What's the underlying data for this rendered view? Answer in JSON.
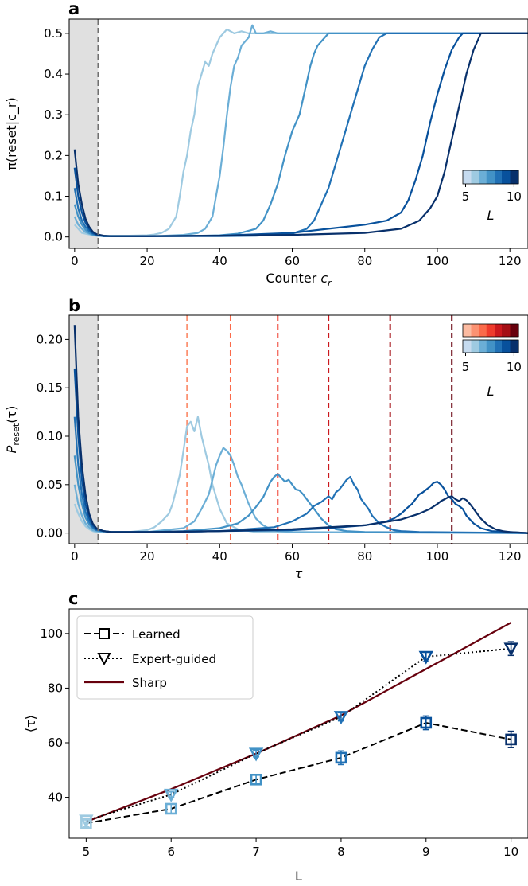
{
  "figure": {
    "panels": [
      "a",
      "b",
      "c"
    ]
  },
  "chart_data": [
    {
      "panel": "a",
      "type": "line",
      "xlabel_prefix": "Counter ",
      "xlabel_var": "c",
      "xlabel_sub": "r",
      "ylabel": "π(reset|c_r)",
      "xlim": [
        -1.5,
        125
      ],
      "ylim": [
        -0.028,
        0.535
      ],
      "x_ticks": [
        0,
        20,
        40,
        60,
        80,
        100,
        120
      ],
      "y_ticks": [
        0.0,
        0.1,
        0.2,
        0.3,
        0.4,
        0.5
      ],
      "y_tick_labels": [
        "0.0",
        "0.1",
        "0.2",
        "0.3",
        "0.4",
        "0.5"
      ],
      "shaded_region": [
        -1.5,
        6.5
      ],
      "dashed_line_x": 6.5,
      "colorbar": {
        "label": "L",
        "ticks": [
          5,
          10
        ],
        "palette": "Blues"
      },
      "series": [
        {
          "L": 5,
          "color": "#9ecae1",
          "x": [
            0,
            1,
            2,
            3,
            4,
            5,
            6,
            8,
            10,
            15,
            20,
            22,
            24,
            26,
            28,
            29,
            30,
            31,
            32,
            33,
            34,
            35,
            36,
            37,
            38,
            39,
            40,
            41,
            42,
            44,
            46,
            48,
            50,
            52,
            125
          ],
          "y": [
            0.03,
            0.02,
            0.01,
            0.008,
            0.006,
            0.004,
            0.003,
            0.003,
            0.003,
            0.003,
            0.004,
            0.006,
            0.01,
            0.02,
            0.05,
            0.1,
            0.16,
            0.2,
            0.26,
            0.3,
            0.37,
            0.4,
            0.43,
            0.42,
            0.45,
            0.47,
            0.49,
            0.5,
            0.51,
            0.5,
            0.505,
            0.5,
            0.5,
            0.5,
            0.5
          ]
        },
        {
          "L": 6,
          "color": "#6baed6",
          "x": [
            0,
            1,
            2,
            3,
            4,
            5,
            6,
            8,
            10,
            15,
            20,
            25,
            30,
            34,
            36,
            38,
            39,
            40,
            41,
            42,
            43,
            44,
            45,
            46,
            47,
            48,
            49,
            50,
            52,
            54,
            56,
            125
          ],
          "y": [
            0.05,
            0.03,
            0.02,
            0.012,
            0.008,
            0.005,
            0.003,
            0.002,
            0.002,
            0.002,
            0.002,
            0.003,
            0.005,
            0.01,
            0.02,
            0.05,
            0.1,
            0.15,
            0.22,
            0.3,
            0.37,
            0.42,
            0.44,
            0.47,
            0.48,
            0.49,
            0.52,
            0.5,
            0.5,
            0.505,
            0.5,
            0.5
          ]
        },
        {
          "L": 7,
          "color": "#4292c6",
          "x": [
            0,
            1,
            2,
            3,
            4,
            5,
            6,
            8,
            10,
            15,
            20,
            30,
            40,
            45,
            50,
            52,
            54,
            56,
            58,
            60,
            62,
            63,
            64,
            65,
            66,
            67,
            68,
            69,
            70,
            72,
            75,
            80,
            125
          ],
          "y": [
            0.08,
            0.05,
            0.03,
            0.018,
            0.01,
            0.006,
            0.004,
            0.002,
            0.002,
            0.002,
            0.002,
            0.002,
            0.004,
            0.008,
            0.02,
            0.04,
            0.08,
            0.13,
            0.2,
            0.26,
            0.3,
            0.34,
            0.38,
            0.42,
            0.45,
            0.47,
            0.48,
            0.49,
            0.5,
            0.5,
            0.5,
            0.5,
            0.5
          ]
        },
        {
          "L": 8,
          "color": "#2171b5",
          "x": [
            0,
            1,
            2,
            3,
            4,
            5,
            6,
            8,
            10,
            20,
            30,
            40,
            50,
            60,
            64,
            66,
            68,
            70,
            72,
            74,
            76,
            78,
            80,
            82,
            84,
            86,
            88,
            90,
            125
          ],
          "y": [
            0.12,
            0.07,
            0.04,
            0.025,
            0.015,
            0.008,
            0.005,
            0.002,
            0.002,
            0.002,
            0.002,
            0.002,
            0.003,
            0.008,
            0.02,
            0.04,
            0.08,
            0.12,
            0.18,
            0.24,
            0.3,
            0.36,
            0.42,
            0.46,
            0.49,
            0.5,
            0.5,
            0.5,
            0.5
          ]
        },
        {
          "L": 9,
          "color": "#08519c",
          "x": [
            0,
            1,
            2,
            3,
            4,
            5,
            6,
            8,
            10,
            20,
            40,
            60,
            70,
            80,
            86,
            90,
            92,
            94,
            96,
            98,
            100,
            102,
            104,
            106,
            107,
            108,
            110,
            125
          ],
          "y": [
            0.17,
            0.1,
            0.06,
            0.035,
            0.02,
            0.01,
            0.006,
            0.002,
            0.002,
            0.002,
            0.003,
            0.01,
            0.02,
            0.03,
            0.04,
            0.06,
            0.09,
            0.14,
            0.2,
            0.28,
            0.35,
            0.41,
            0.46,
            0.49,
            0.5,
            0.5,
            0.5,
            0.5
          ]
        },
        {
          "L": 10,
          "color": "#08306b",
          "x": [
            0,
            1,
            2,
            3,
            4,
            5,
            6,
            8,
            10,
            20,
            40,
            60,
            80,
            90,
            95,
            98,
            100,
            102,
            104,
            106,
            108,
            110,
            112,
            114,
            125
          ],
          "y": [
            0.215,
            0.13,
            0.08,
            0.045,
            0.025,
            0.013,
            0.007,
            0.003,
            0.002,
            0.002,
            0.003,
            0.005,
            0.01,
            0.02,
            0.04,
            0.07,
            0.1,
            0.16,
            0.24,
            0.32,
            0.4,
            0.46,
            0.5,
            0.5,
            0.5
          ]
        }
      ]
    },
    {
      "panel": "b",
      "type": "line",
      "xlabel": "τ",
      "ylabel_var": "P",
      "ylabel_sub": "reset",
      "ylabel_tail": "(τ)",
      "xlim": [
        -1.5,
        125
      ],
      "ylim": [
        -0.011,
        0.225
      ],
      "x_ticks": [
        0,
        20,
        40,
        60,
        80,
        100,
        120
      ],
      "y_ticks": [
        0.0,
        0.05,
        0.1,
        0.15,
        0.2
      ],
      "y_tick_labels": [
        "0.00",
        "0.05",
        "0.10",
        "0.15",
        "0.20"
      ],
      "shaded_region": [
        -1.5,
        6.5
      ],
      "dashed_line_x": 6.5,
      "reference_lines": [
        {
          "x": 31,
          "color": "#fc9272"
        },
        {
          "x": 43,
          "color": "#fb6a4a"
        },
        {
          "x": 56,
          "color": "#ef3b2c"
        },
        {
          "x": 70,
          "color": "#cb181d"
        },
        {
          "x": 87,
          "color": "#a50f15"
        },
        {
          "x": 104,
          "color": "#67000d"
        }
      ],
      "colorbars": [
        {
          "palette": "Reds"
        },
        {
          "palette": "Blues",
          "label": "L",
          "ticks": [
            5,
            10
          ]
        }
      ],
      "series": [
        {
          "L": 5,
          "color": "#9ecae1",
          "x": [
            0,
            1,
            2,
            3,
            4,
            5,
            6,
            8,
            10,
            15,
            20,
            22,
            24,
            26,
            27,
            28,
            29,
            30,
            31,
            32,
            33,
            34,
            35,
            36,
            37,
            38,
            40,
            42,
            45,
            50,
            125
          ],
          "y": [
            0.03,
            0.02,
            0.012,
            0.007,
            0.004,
            0.002,
            0.001,
            0.001,
            0.001,
            0.001,
            0.003,
            0.006,
            0.012,
            0.02,
            0.03,
            0.045,
            0.06,
            0.085,
            0.11,
            0.115,
            0.105,
            0.12,
            0.1,
            0.085,
            0.07,
            0.05,
            0.025,
            0.01,
            0.004,
            0.001,
            0.0
          ]
        },
        {
          "L": 6,
          "color": "#6baed6",
          "x": [
            0,
            1,
            2,
            3,
            4,
            5,
            6,
            8,
            10,
            20,
            30,
            33,
            35,
            37,
            38,
            39,
            40,
            41,
            42,
            43,
            44,
            45,
            46,
            47,
            48,
            49,
            50,
            52,
            54,
            56,
            60,
            125
          ],
          "y": [
            0.05,
            0.03,
            0.018,
            0.01,
            0.006,
            0.003,
            0.002,
            0.001,
            0.001,
            0.001,
            0.005,
            0.012,
            0.025,
            0.04,
            0.055,
            0.07,
            0.08,
            0.088,
            0.085,
            0.08,
            0.07,
            0.058,
            0.05,
            0.04,
            0.03,
            0.022,
            0.015,
            0.008,
            0.004,
            0.002,
            0.001,
            0.0
          ]
        },
        {
          "L": 7,
          "color": "#4292c6",
          "x": [
            0,
            1,
            2,
            3,
            4,
            5,
            6,
            8,
            10,
            20,
            30,
            40,
            45,
            48,
            50,
            52,
            53,
            54,
            55,
            56,
            57,
            58,
            59,
            60,
            61,
            62,
            63,
            64,
            66,
            68,
            70,
            72,
            75,
            80,
            125
          ],
          "y": [
            0.08,
            0.05,
            0.03,
            0.016,
            0.009,
            0.005,
            0.003,
            0.002,
            0.001,
            0.001,
            0.002,
            0.005,
            0.01,
            0.018,
            0.027,
            0.037,
            0.045,
            0.053,
            0.058,
            0.061,
            0.057,
            0.053,
            0.055,
            0.05,
            0.045,
            0.044,
            0.04,
            0.035,
            0.025,
            0.015,
            0.008,
            0.004,
            0.002,
            0.001,
            0.0
          ]
        },
        {
          "L": 8,
          "color": "#2171b5",
          "x": [
            0,
            1,
            2,
            3,
            4,
            5,
            6,
            8,
            10,
            20,
            40,
            55,
            60,
            64,
            66,
            68,
            70,
            71,
            72,
            73,
            74,
            75,
            76,
            77,
            78,
            79,
            80,
            81,
            82,
            84,
            86,
            88,
            90,
            95,
            125
          ],
          "y": [
            0.12,
            0.07,
            0.04,
            0.022,
            0.012,
            0.006,
            0.003,
            0.002,
            0.001,
            0.001,
            0.002,
            0.006,
            0.012,
            0.02,
            0.028,
            0.032,
            0.038,
            0.035,
            0.042,
            0.045,
            0.05,
            0.055,
            0.058,
            0.05,
            0.045,
            0.035,
            0.03,
            0.025,
            0.018,
            0.01,
            0.006,
            0.003,
            0.002,
            0.001,
            0.0
          ]
        },
        {
          "L": 9,
          "color": "#08519c",
          "x": [
            0,
            1,
            2,
            3,
            4,
            5,
            6,
            8,
            10,
            20,
            40,
            60,
            70,
            80,
            86,
            88,
            90,
            92,
            93,
            94,
            95,
            96,
            97,
            98,
            99,
            100,
            101,
            102,
            103,
            104,
            105,
            106,
            107,
            108,
            110,
            112,
            115,
            125
          ],
          "y": [
            0.17,
            0.1,
            0.055,
            0.03,
            0.016,
            0.008,
            0.004,
            0.002,
            0.001,
            0.001,
            0.002,
            0.003,
            0.005,
            0.008,
            0.012,
            0.015,
            0.02,
            0.027,
            0.03,
            0.035,
            0.04,
            0.042,
            0.045,
            0.048,
            0.052,
            0.053,
            0.05,
            0.045,
            0.038,
            0.035,
            0.03,
            0.028,
            0.025,
            0.018,
            0.01,
            0.005,
            0.002,
            0.0
          ]
        },
        {
          "L": 10,
          "color": "#08306b",
          "x": [
            0,
            1,
            2,
            3,
            4,
            5,
            6,
            8,
            10,
            20,
            40,
            60,
            80,
            90,
            95,
            98,
            100,
            101,
            102,
            103,
            104,
            105,
            106,
            107,
            108,
            109,
            110,
            111,
            112,
            114,
            116,
            118,
            120,
            125
          ],
          "y": [
            0.215,
            0.12,
            0.07,
            0.04,
            0.02,
            0.01,
            0.005,
            0.002,
            0.001,
            0.001,
            0.002,
            0.004,
            0.008,
            0.014,
            0.02,
            0.025,
            0.03,
            0.033,
            0.035,
            0.037,
            0.038,
            0.035,
            0.033,
            0.036,
            0.034,
            0.03,
            0.025,
            0.02,
            0.015,
            0.008,
            0.004,
            0.002,
            0.001,
            0.0
          ]
        }
      ]
    },
    {
      "panel": "c",
      "type": "line",
      "xlabel": "L",
      "ylabel": "⟨τ⟩",
      "xlim": [
        4.8,
        10.2
      ],
      "ylim": [
        25,
        109
      ],
      "x_ticks": [
        5,
        6,
        7,
        8,
        9,
        10
      ],
      "y_ticks": [
        40,
        60,
        80,
        100
      ],
      "legend": {
        "placement": "top-left",
        "entries": [
          "Learned",
          "Expert-guided",
          "Sharp"
        ]
      },
      "marker_colors": [
        "#9ecae1",
        "#6baed6",
        "#4292c6",
        "#2171b5",
        "#08519c",
        "#08306b"
      ],
      "series": [
        {
          "name": "Learned",
          "marker": "square",
          "linestyle": "dashed",
          "x": [
            5,
            6,
            7,
            8,
            9,
            10
          ],
          "y": [
            30.5,
            35.8,
            46.5,
            54.5,
            67.3,
            61.2
          ],
          "err": [
            1.2,
            1.8,
            1.8,
            2.5,
            2.5,
            3.0
          ]
        },
        {
          "name": "Expert-guided",
          "marker": "triangle-down",
          "linestyle": "dotted",
          "x": [
            5,
            6,
            7,
            8,
            9,
            10
          ],
          "y": [
            31.5,
            41.0,
            56.0,
            69.5,
            91.5,
            94.5
          ],
          "err": [
            0.8,
            1.0,
            1.2,
            1.5,
            1.8,
            2.5
          ]
        },
        {
          "name": "Sharp",
          "marker": "none",
          "linestyle": "solid",
          "color": "#67000d",
          "x": [
            5,
            6,
            7,
            8,
            9,
            10
          ],
          "y": [
            31,
            43,
            56,
            70,
            87,
            104
          ]
        }
      ]
    }
  ]
}
